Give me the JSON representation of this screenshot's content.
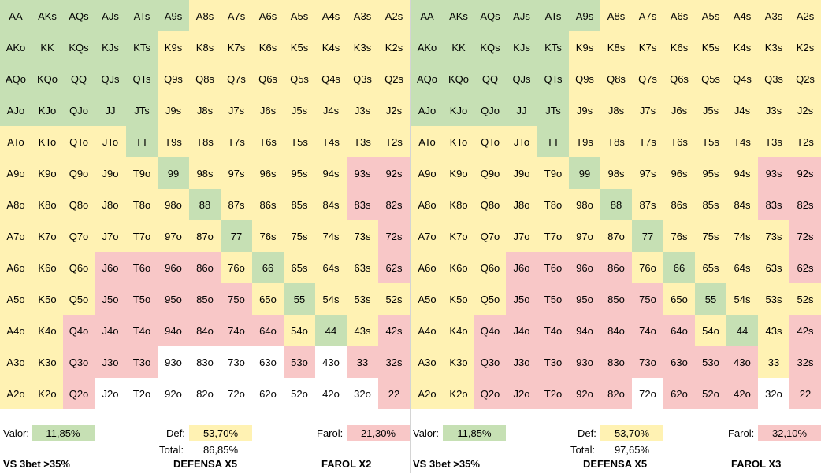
{
  "colors": {
    "green": "#c6e0b4",
    "yellow": "#fff2b3",
    "red": "#f8c7c7",
    "white": "#ffffff"
  },
  "hands": [
    [
      "AA",
      "AKs",
      "AQs",
      "AJs",
      "ATs",
      "A9s",
      "A8s",
      "A7s",
      "A6s",
      "A5s",
      "A4s",
      "A3s",
      "A2s"
    ],
    [
      "AKo",
      "KK",
      "KQs",
      "KJs",
      "KTs",
      "K9s",
      "K8s",
      "K7s",
      "K6s",
      "K5s",
      "K4s",
      "K3s",
      "K2s"
    ],
    [
      "AQo",
      "KQo",
      "QQ",
      "QJs",
      "QTs",
      "Q9s",
      "Q8s",
      "Q7s",
      "Q6s",
      "Q5s",
      "Q4s",
      "Q3s",
      "Q2s"
    ],
    [
      "AJo",
      "KJo",
      "QJo",
      "JJ",
      "JTs",
      "J9s",
      "J8s",
      "J7s",
      "J6s",
      "J5s",
      "J4s",
      "J3s",
      "J2s"
    ],
    [
      "ATo",
      "KTo",
      "QTo",
      "JTo",
      "TT",
      "T9s",
      "T8s",
      "T7s",
      "T6s",
      "T5s",
      "T4s",
      "T3s",
      "T2s"
    ],
    [
      "A9o",
      "K9o",
      "Q9o",
      "J9o",
      "T9o",
      "99",
      "98s",
      "97s",
      "96s",
      "95s",
      "94s",
      "93s",
      "92s"
    ],
    [
      "A8o",
      "K8o",
      "Q8o",
      "J8o",
      "T8o",
      "98o",
      "88",
      "87s",
      "86s",
      "85s",
      "84s",
      "83s",
      "82s"
    ],
    [
      "A7o",
      "K7o",
      "Q7o",
      "J7o",
      "T7o",
      "97o",
      "87o",
      "77",
      "76s",
      "75s",
      "74s",
      "73s",
      "72s"
    ],
    [
      "A6o",
      "K6o",
      "Q6o",
      "J6o",
      "T6o",
      "96o",
      "86o",
      "76o",
      "66",
      "65s",
      "64s",
      "63s",
      "62s"
    ],
    [
      "A5o",
      "K5o",
      "Q5o",
      "J5o",
      "T5o",
      "95o",
      "85o",
      "75o",
      "65o",
      "55",
      "54s",
      "53s",
      "52s"
    ],
    [
      "A4o",
      "K4o",
      "Q4o",
      "J4o",
      "T4o",
      "94o",
      "84o",
      "74o",
      "64o",
      "54o",
      "44",
      "43s",
      "42s"
    ],
    [
      "A3o",
      "K3o",
      "Q3o",
      "J3o",
      "T3o",
      "93o",
      "83o",
      "73o",
      "63o",
      "53o",
      "43o",
      "33",
      "32s"
    ],
    [
      "A2o",
      "K2o",
      "Q2o",
      "J2o",
      "T2o",
      "92o",
      "82o",
      "72o",
      "62o",
      "52o",
      "42o",
      "32o",
      "22"
    ]
  ],
  "panels": [
    {
      "cell_colors": [
        "ggggggyyyyyyy",
        "gggggyyyyyyyy",
        "gggggyyyyyyyy",
        "gggggyyyyyyyy",
        "yyyyyyyyyyyyy",
        "yyyyyyyyyyyrr",
        "yyyyyyyyyyyrr",
        "yyyyyyyyyyyyr",
        "yyyrrrryyyyyr",
        "yyyrrrrryyyyy",
        "yyrrrrrrryyyr",
        "yyrrrwwwwrwrr",
        "yyrwwwwwwwwwr"
      ],
      "greens": [
        [
          5,
          5
        ],
        [
          6,
          6
        ],
        [
          7,
          7
        ],
        [
          8,
          8
        ],
        [
          9,
          9
        ],
        [
          10,
          10
        ],
        [
          3,
          3
        ],
        [
          4,
          4
        ]
      ],
      "valor_label": "Valor:",
      "valor_value": "11,85%",
      "def_label": "Def:",
      "def_value": "53,70%",
      "total_label": "Total:",
      "total_value": "86,85%",
      "farol_label": "Farol:",
      "farol_value": "21,30%",
      "title_left": "VS 3bet >35%",
      "title_mid": "DEFENSA X5",
      "title_right": "FAROL X2"
    },
    {
      "cell_colors": [
        "ggggggyyyyyyy",
        "gggggyyyyyyyy",
        "gggggyyyyyyyy",
        "gggggyyyyyyyy",
        "yyyyyyyyyyyyy",
        "yyyyyyyyyyyrr",
        "yyyyyyyyyyyrr",
        "yyyyyyyyyyyyr",
        "yyyrrrryyyyyr",
        "yyyrrrrryyyyy",
        "yyrrrrrrryyyr",
        "yyrrrrrrrrryr",
        "yyrrrrrwrrrwr"
      ],
      "greens": [
        [
          5,
          5
        ],
        [
          6,
          6
        ],
        [
          7,
          7
        ],
        [
          8,
          8
        ],
        [
          9,
          9
        ],
        [
          10,
          10
        ],
        [
          3,
          3
        ],
        [
          4,
          4
        ]
      ],
      "valor_label": "Valor:",
      "valor_value": "11,85%",
      "def_label": "Def:",
      "def_value": "53,70%",
      "total_label": "Total:",
      "total_value": "97,65%",
      "farol_label": "Farol:",
      "farol_value": "32,10%",
      "title_left": "VS 3bet >35%",
      "title_mid": "DEFENSA X5",
      "title_right": "FAROL X3"
    }
  ]
}
